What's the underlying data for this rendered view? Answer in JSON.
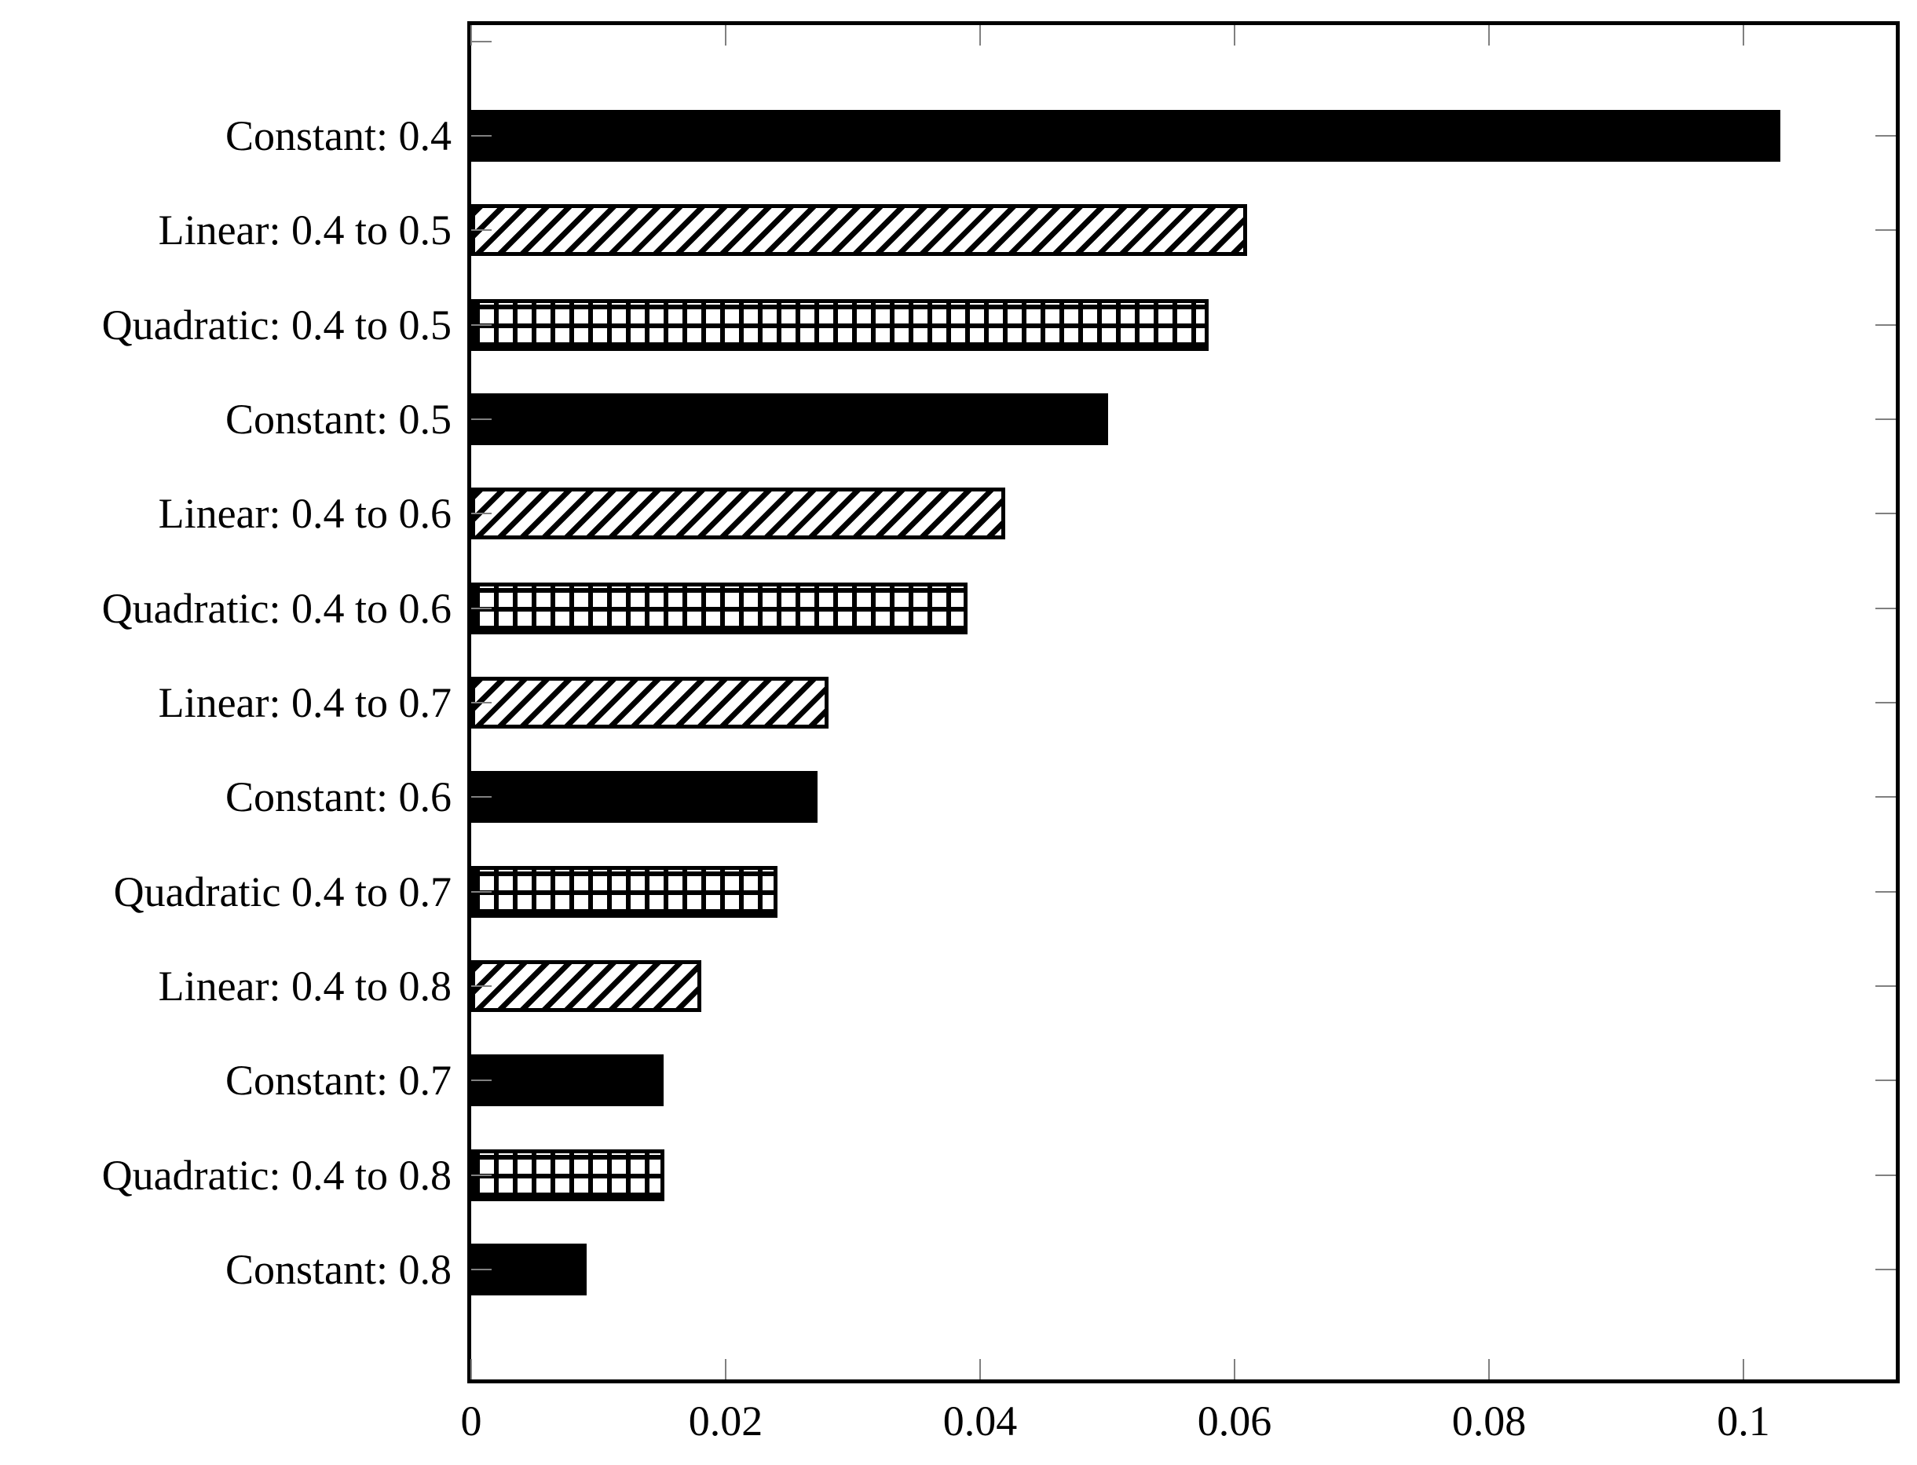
{
  "chart_data": {
    "type": "bar",
    "orientation": "horizontal",
    "title": "",
    "xlabel": "",
    "ylabel": "",
    "grid": false,
    "legend": null,
    "categories": [
      "Constant: 0.4",
      "Linear: 0.4 to 0.5",
      "Quadratic: 0.4 to 0.5",
      "Constant: 0.5",
      "Linear: 0.4 to 0.6",
      "Quadratic: 0.4 to 0.6",
      "Linear: 0.4 to 0.7",
      "Constant: 0.6",
      "Quadratic 0.4 to 0.7",
      "Linear: 0.4 to 0.8",
      "Constant: 0.7",
      "Quadratic: 0.4 to 0.8",
      "Constant: 0.8"
    ],
    "values": [
      0.1029,
      0.061,
      0.058,
      0.0501,
      0.042,
      0.039,
      0.0281,
      0.0272,
      0.0241,
      0.0181,
      0.0151,
      0.0152,
      0.0091
    ],
    "patterns": [
      "solid",
      "hatch",
      "grid",
      "solid",
      "hatch",
      "grid",
      "hatch",
      "solid",
      "grid",
      "hatch",
      "solid",
      "grid",
      "solid"
    ],
    "pattern_legend": {
      "solid": "solid black fill (Constant)",
      "hatch": "diagonal hatch fill (Linear)",
      "grid": "crosshatch grid fill (Quadratic)"
    },
    "xlim": [
      0,
      0.112
    ],
    "xticks": [
      0,
      0.02,
      0.04,
      0.06,
      0.08,
      0.1
    ],
    "xtick_labels": [
      "0",
      "0.02",
      "0.04",
      "0.06",
      "0.08",
      "0.1"
    ],
    "colors": {
      "bar_fill": "#000000",
      "axis_border": "#000000",
      "tick_mark": "#808080",
      "background": "#ffffff",
      "text": "#000000"
    }
  }
}
